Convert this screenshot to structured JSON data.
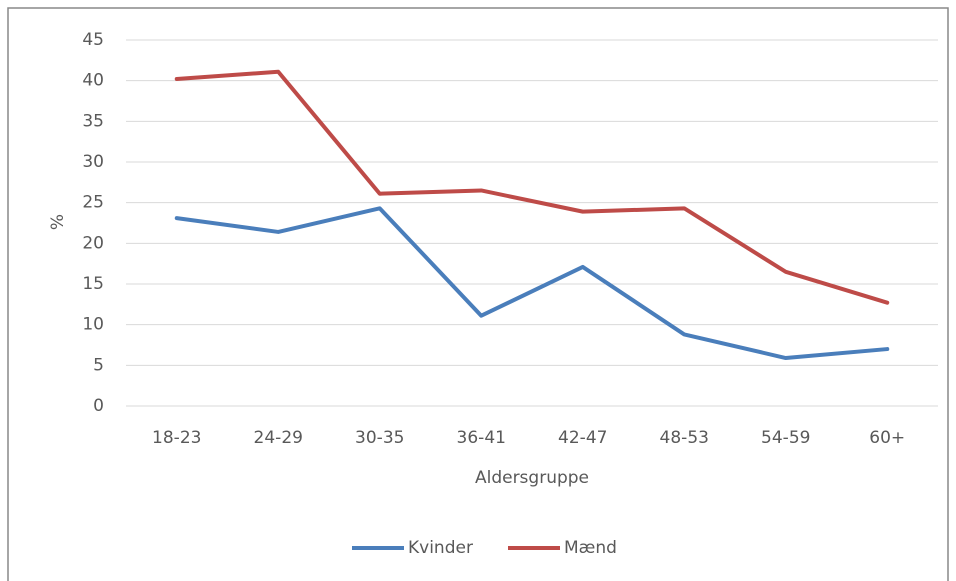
{
  "chart_data": {
    "type": "line",
    "x_label": "Aldersgruppe",
    "y_label": "%",
    "categories": [
      "18-23",
      "24-29",
      "30-35",
      "36-41",
      "42-47",
      "48-53",
      "54-59",
      "60+"
    ],
    "series": [
      {
        "name": "Kvinder",
        "color": "#4a7ebb",
        "values": [
          23.1,
          21.4,
          24.3,
          11.1,
          17.1,
          8.8,
          5.9,
          7.0
        ]
      },
      {
        "name": "Mænd",
        "color": "#be4b48",
        "values": [
          40.2,
          41.1,
          26.1,
          26.5,
          23.9,
          24.3,
          16.5,
          12.7
        ]
      }
    ],
    "ylim": [
      0,
      45
    ],
    "yticks": [
      0,
      5,
      10,
      15,
      20,
      25,
      30,
      35,
      40,
      45
    ],
    "grid": true,
    "legend": "bottom"
  }
}
